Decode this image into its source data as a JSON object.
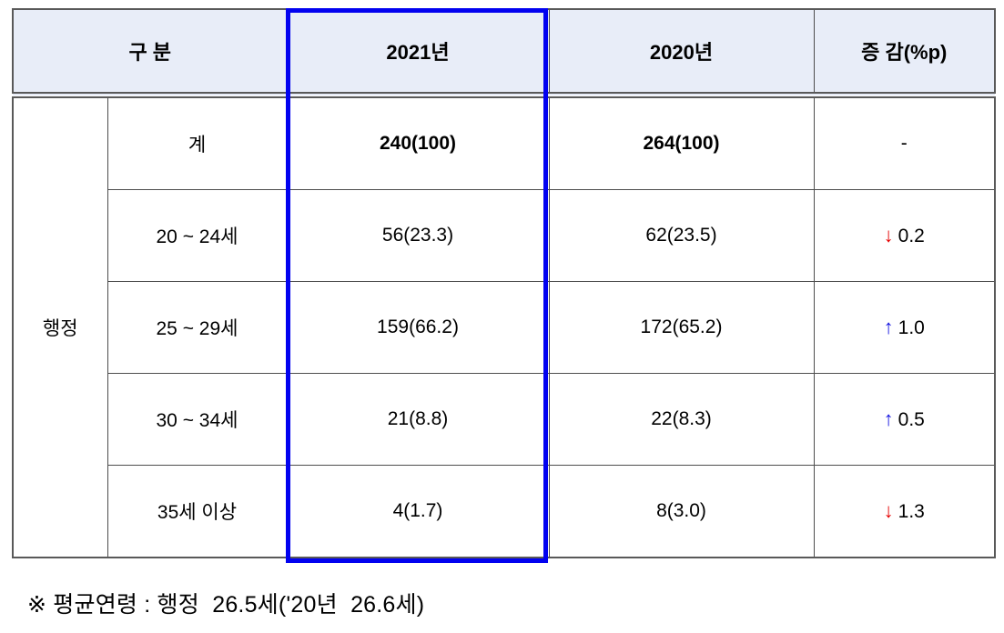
{
  "table": {
    "header": {
      "category": "구 분",
      "col_2021": "2021년",
      "col_2020": "2020년",
      "change": "증 감(%p)"
    },
    "group_label": "행정",
    "rows": [
      {
        "label": "계",
        "v2021": "240(100)",
        "v2020": "264(100)",
        "change": "-",
        "arrow": "",
        "arrow_class": "arrow"
      },
      {
        "label": "20 ~ 24세",
        "v2021": "56(23.3)",
        "v2020": "62(23.5)",
        "change": "0.2",
        "arrow": "↓",
        "arrow_class": "arrow down"
      },
      {
        "label": "25 ~ 29세",
        "v2021": "159(66.2)",
        "v2020": "172(65.2)",
        "change": "1.0",
        "arrow": "↑",
        "arrow_class": "arrow up"
      },
      {
        "label": "30 ~ 34세",
        "v2021": "21(8.8)",
        "v2020": "22(8.3)",
        "change": "0.5",
        "arrow": "↑",
        "arrow_class": "arrow up"
      },
      {
        "label": "35세 이상",
        "v2021": "4(1.7)",
        "v2020": "8(3.0)",
        "change": "1.3",
        "arrow": "↓",
        "arrow_class": "arrow down"
      }
    ],
    "colors": {
      "header_bg": "#e8edf8",
      "grid_border": "#595959",
      "highlight_border": "#0202f0",
      "arrow_down": "#e60000",
      "arrow_up": "#1414e0"
    }
  },
  "footnote": "※ 평균연령 : 행정  26.5세('20년  26.6세)",
  "chart_data": {
    "type": "table",
    "title": "행정 연령대별 인원 분포 (2021년 vs 2020년)",
    "columns": [
      "구 분",
      "2021년",
      "2020년",
      "증 감(%p)"
    ],
    "group": "행정",
    "rows": [
      [
        "계",
        "240(100)",
        "264(100)",
        "-"
      ],
      [
        "20 ~ 24세",
        "56(23.3)",
        "62(23.5)",
        "-0.2"
      ],
      [
        "25 ~ 29세",
        "159(66.2)",
        "172(65.2)",
        "+1.0"
      ],
      [
        "30 ~ 34세",
        "21(8.8)",
        "22(8.3)",
        "+0.5"
      ],
      [
        "35세 이상",
        "4(1.7)",
        "8(3.0)",
        "-1.3"
      ]
    ],
    "note": "평균연령: 행정 26.5세('20년 26.6세)"
  }
}
